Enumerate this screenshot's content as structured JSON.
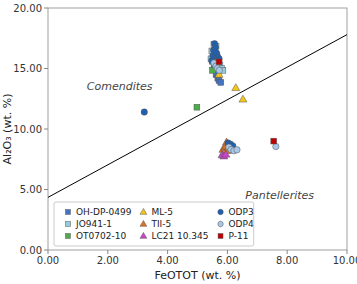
{
  "chart_data": {
    "type": "scatter",
    "x_label": "FeOTOT (wt. %)",
    "y_label": "Al₂O₃ (wt. %)",
    "xlim": [
      0,
      10
    ],
    "ylim": [
      0,
      20
    ],
    "xticks": [
      {
        "value": 0.0,
        "label": "0.00"
      },
      {
        "value": 2.0,
        "label": "2.00"
      },
      {
        "value": 4.0,
        "label": "4.00"
      },
      {
        "value": 6.0,
        "label": "6.00"
      },
      {
        "value": 8.0,
        "label": "8.00"
      },
      {
        "value": 10.0,
        "label": "10.00"
      }
    ],
    "yticks": [
      {
        "value": 0.0,
        "label": "0.00"
      },
      {
        "value": 5.0,
        "label": "5.00"
      },
      {
        "value": 10.0,
        "label": "10.00"
      },
      {
        "value": 15.0,
        "label": "15.00"
      },
      {
        "value": 20.0,
        "label": "20.00"
      }
    ],
    "grid": false,
    "legend": "lower left",
    "dividing_line": {
      "x": [
        0,
        10
      ],
      "y": [
        4.35,
        17.8
      ],
      "color": "#000000"
    },
    "annotations": [
      {
        "text": "Comendites",
        "x": 1.3,
        "y": 13.2
      },
      {
        "text": "Pantellerites",
        "x": 6.6,
        "y": 4.2
      }
    ],
    "series": [
      {
        "name": "OH-DP-0499",
        "marker": "square",
        "color": "#4472C4",
        "x": [
          5.55,
          5.62,
          5.68,
          5.72,
          5.78,
          5.5
        ],
        "y": [
          15.1,
          14.5,
          14.2,
          14.0,
          13.85,
          15.6
        ]
      },
      {
        "name": "JO941-1",
        "marker": "square",
        "color": "#92CDDC",
        "x": [
          5.45,
          5.52,
          5.58,
          5.55,
          5.62,
          5.48,
          5.65,
          5.7,
          5.75,
          5.8,
          5.85
        ],
        "y": [
          15.8,
          16.2,
          16.6,
          17.0,
          16.85,
          16.45,
          16.1,
          15.7,
          15.3,
          15.0,
          14.85
        ]
      },
      {
        "name": "OT0702-10",
        "marker": "square",
        "color": "#4EAC4E",
        "x": [
          4.98,
          5.5
        ],
        "y": [
          11.8,
          14.85
        ]
      },
      {
        "name": "ML-5",
        "marker": "triangle",
        "color": "#F5C518",
        "x": [
          5.72,
          6.28,
          6.52
        ],
        "y": [
          14.5,
          13.4,
          12.45
        ]
      },
      {
        "name": "TII-5",
        "marker": "triangle",
        "color": "#E07020",
        "x": [
          5.85,
          5.92,
          6.02,
          6.12,
          5.97,
          6.0,
          5.88
        ],
        "y": [
          8.3,
          8.5,
          8.4,
          8.6,
          8.9,
          8.2,
          8.05
        ]
      },
      {
        "name": "LC21 10.345",
        "marker": "triangle",
        "color": "#CC44CC",
        "x": [
          5.82,
          5.88,
          5.95
        ],
        "y": [
          7.85,
          7.75,
          7.9
        ]
      },
      {
        "name": "ODP3",
        "marker": "circle",
        "color": "#2060B0",
        "x": [
          3.22,
          5.48,
          5.52,
          5.54,
          5.57,
          5.6,
          5.63,
          5.67,
          5.72,
          6.02,
          6.1,
          6.18
        ],
        "y": [
          11.4,
          15.65,
          16.05,
          16.5,
          17.05,
          16.75,
          16.3,
          16.0,
          15.8,
          8.85,
          8.75,
          8.6
        ]
      },
      {
        "name": "ODP4",
        "marker": "circle",
        "color": "#A8C8E8",
        "x": [
          5.55,
          5.62,
          5.67,
          5.73,
          6.05,
          6.12,
          6.22,
          6.32,
          7.62
        ],
        "y": [
          15.45,
          15.2,
          15.0,
          14.85,
          8.5,
          8.3,
          8.2,
          8.28,
          8.55
        ]
      },
      {
        "name": "P-11",
        "marker": "square",
        "color": "#C00000",
        "x": [
          5.72,
          7.55
        ],
        "y": [
          15.55,
          9.0
        ]
      }
    ]
  }
}
